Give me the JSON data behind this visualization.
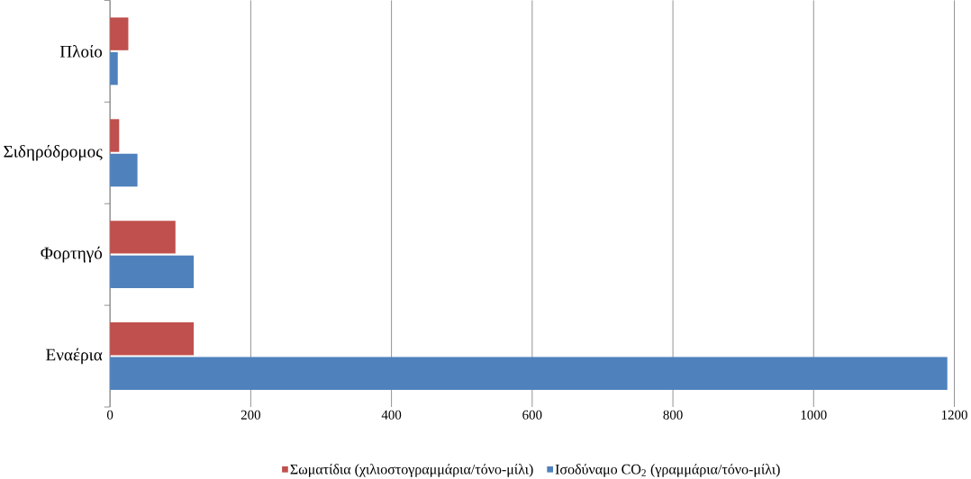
{
  "chart_data": {
    "type": "bar",
    "orientation": "horizontal",
    "categories": [
      "Πλοίο",
      "Σιδηρόδρομος",
      "Φορτηγό",
      "Εναέρια"
    ],
    "series": [
      {
        "name": "Σωματίδια (χιλιοστογραμμάρια/τόνο-μίλι)",
        "color": "#c0504d",
        "values": [
          26,
          13,
          93,
          119
        ]
      },
      {
        "name": "Ισοδύναμο CO$_{2}$ (γραμμάρια/τόνο-μίλι)",
        "color": "#4f81bd",
        "values": [
          11,
          39,
          119,
          1190
        ]
      }
    ],
    "xlim": [
      0,
      1200
    ],
    "xticks": [
      0,
      200,
      400,
      600,
      800,
      1000,
      1200
    ],
    "grid": "x",
    "legend": "bottom"
  }
}
